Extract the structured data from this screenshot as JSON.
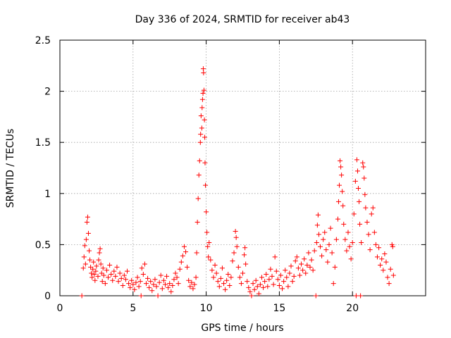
{
  "chart_data": {
    "type": "scatter",
    "title": "Day 336 of 2024, SRMTID for receiver ab43",
    "xlabel": "GPS time / hours",
    "ylabel": "SRMTID / TECUs",
    "xlim": [
      0,
      25
    ],
    "ylim": [
      0,
      2.5
    ],
    "xticks": [
      "0",
      "5",
      "10",
      "15",
      "20"
    ],
    "yticks": [
      "0",
      "0.5",
      "1",
      "1.5",
      "2",
      "2.5"
    ],
    "grid": true,
    "marker": "+",
    "color": "#ff0000",
    "series": [
      {
        "name": "SRMTID",
        "points": [
          [
            1.5,
            0.0
          ],
          [
            1.6,
            0.27
          ],
          [
            1.65,
            0.38
          ],
          [
            1.7,
            0.49
          ],
          [
            1.75,
            0.31
          ],
          [
            1.8,
            0.55
          ],
          [
            1.85,
            0.72
          ],
          [
            1.9,
            0.77
          ],
          [
            1.95,
            0.61
          ],
          [
            2.0,
            0.44
          ],
          [
            2.05,
            0.35
          ],
          [
            2.1,
            0.28
          ],
          [
            2.15,
            0.22
          ],
          [
            2.2,
            0.18
          ],
          [
            2.25,
            0.26
          ],
          [
            2.3,
            0.33
          ],
          [
            2.35,
            0.21
          ],
          [
            2.4,
            0.15
          ],
          [
            2.45,
            0.24
          ],
          [
            2.5,
            0.29
          ],
          [
            2.6,
            0.19
          ],
          [
            2.65,
            0.35
          ],
          [
            2.7,
            0.42
          ],
          [
            2.75,
            0.46
          ],
          [
            2.8,
            0.31
          ],
          [
            2.85,
            0.22
          ],
          [
            2.9,
            0.14
          ],
          [
            2.95,
            0.27
          ],
          [
            3.0,
            0.2
          ],
          [
            3.1,
            0.12
          ],
          [
            3.2,
            0.25
          ],
          [
            3.3,
            0.18
          ],
          [
            3.4,
            0.3
          ],
          [
            3.5,
            0.21
          ],
          [
            3.6,
            0.15
          ],
          [
            3.7,
            0.24
          ],
          [
            3.8,
            0.19
          ],
          [
            3.9,
            0.28
          ],
          [
            4.0,
            0.14
          ],
          [
            4.1,
            0.22
          ],
          [
            4.2,
            0.17
          ],
          [
            4.3,
            0.1
          ],
          [
            4.4,
            0.2
          ],
          [
            4.5,
            0.16
          ],
          [
            4.6,
            0.24
          ],
          [
            4.7,
            0.12
          ],
          [
            4.8,
            0.08
          ],
          [
            4.9,
            0.15
          ],
          [
            5.0,
            0.11
          ],
          [
            5.1,
            0.06
          ],
          [
            5.2,
            0.13
          ],
          [
            5.3,
            0.18
          ],
          [
            5.4,
            0.09
          ],
          [
            5.5,
            0.14
          ],
          [
            5.55,
            0.0
          ],
          [
            5.6,
            0.27
          ],
          [
            5.7,
            0.21
          ],
          [
            5.8,
            0.31
          ],
          [
            5.9,
            0.12
          ],
          [
            6.0,
            0.17
          ],
          [
            6.1,
            0.08
          ],
          [
            6.2,
            0.14
          ],
          [
            6.3,
            0.05
          ],
          [
            6.4,
            0.11
          ],
          [
            6.5,
            0.16
          ],
          [
            6.6,
            0.09
          ],
          [
            6.7,
            0.0
          ],
          [
            6.8,
            0.13
          ],
          [
            6.9,
            0.2
          ],
          [
            7.0,
            0.07
          ],
          [
            7.1,
            0.15
          ],
          [
            7.2,
            0.11
          ],
          [
            7.3,
            0.19
          ],
          [
            7.4,
            0.08
          ],
          [
            7.5,
            0.12
          ],
          [
            7.6,
            0.04
          ],
          [
            7.7,
            0.1
          ],
          [
            7.8,
            0.16
          ],
          [
            7.9,
            0.22
          ],
          [
            8.0,
            0.18
          ],
          [
            8.1,
            0.12
          ],
          [
            8.2,
            0.26
          ],
          [
            8.3,
            0.33
          ],
          [
            8.4,
            0.39
          ],
          [
            8.5,
            0.48
          ],
          [
            8.6,
            0.43
          ],
          [
            8.7,
            0.28
          ],
          [
            8.8,
            0.15
          ],
          [
            8.9,
            0.09
          ],
          [
            9.0,
            0.13
          ],
          [
            9.1,
            0.07
          ],
          [
            9.2,
            0.11
          ],
          [
            9.3,
            0.18
          ],
          [
            9.35,
            0.42
          ],
          [
            9.4,
            0.72
          ],
          [
            9.45,
            0.95
          ],
          [
            9.5,
            1.18
          ],
          [
            9.55,
            1.32
          ],
          [
            9.6,
            1.5
          ],
          [
            9.62,
            1.58
          ],
          [
            9.65,
            1.76
          ],
          [
            9.7,
            1.64
          ],
          [
            9.72,
            1.84
          ],
          [
            9.75,
            1.92
          ],
          [
            9.78,
            1.98
          ],
          [
            9.8,
            2.22
          ],
          [
            9.82,
            2.18
          ],
          [
            9.85,
            2.01
          ],
          [
            9.88,
            1.72
          ],
          [
            9.9,
            1.55
          ],
          [
            9.92,
            1.3
          ],
          [
            9.95,
            1.08
          ],
          [
            10.0,
            0.82
          ],
          [
            10.05,
            0.62
          ],
          [
            10.1,
            0.48
          ],
          [
            10.15,
            0.38
          ],
          [
            10.2,
            0.52
          ],
          [
            10.3,
            0.35
          ],
          [
            10.4,
            0.25
          ],
          [
            10.5,
            0.18
          ],
          [
            10.6,
            0.3
          ],
          [
            10.7,
            0.22
          ],
          [
            10.8,
            0.14
          ],
          [
            10.9,
            0.09
          ],
          [
            11.0,
            0.17
          ],
          [
            11.1,
            0.27
          ],
          [
            11.2,
            0.12
          ],
          [
            11.3,
            0.06
          ],
          [
            11.4,
            0.15
          ],
          [
            11.5,
            0.21
          ],
          [
            11.6,
            0.1
          ],
          [
            11.7,
            0.18
          ],
          [
            11.8,
            0.34
          ],
          [
            11.9,
            0.42
          ],
          [
            12.0,
            0.63
          ],
          [
            12.05,
            0.57
          ],
          [
            12.1,
            0.48
          ],
          [
            12.2,
            0.28
          ],
          [
            12.3,
            0.18
          ],
          [
            12.4,
            0.12
          ],
          [
            12.5,
            0.22
          ],
          [
            12.6,
            0.4
          ],
          [
            12.65,
            0.47
          ],
          [
            12.7,
            0.31
          ],
          [
            12.8,
            0.14
          ],
          [
            12.9,
            0.08
          ],
          [
            13.0,
            0.04
          ],
          [
            13.1,
            0.0
          ],
          [
            13.2,
            0.12
          ],
          [
            13.3,
            0.06
          ],
          [
            13.4,
            0.15
          ],
          [
            13.5,
            0.09
          ],
          [
            13.6,
            0.02
          ],
          [
            13.7,
            0.11
          ],
          [
            13.8,
            0.18
          ],
          [
            13.9,
            0.08
          ],
          [
            14.0,
            0.14
          ],
          [
            14.1,
            0.21
          ],
          [
            14.2,
            0.09
          ],
          [
            14.3,
            0.16
          ],
          [
            14.4,
            0.26
          ],
          [
            14.5,
            0.19
          ],
          [
            14.6,
            0.11
          ],
          [
            14.7,
            0.38
          ],
          [
            14.8,
            0.24
          ],
          [
            14.9,
            0.16
          ],
          [
            15.0,
            0.1
          ],
          [
            15.1,
            0.2
          ],
          [
            15.2,
            0.07
          ],
          [
            15.3,
            0.14
          ],
          [
            15.4,
            0.25
          ],
          [
            15.5,
            0.18
          ],
          [
            15.6,
            0.09
          ],
          [
            15.7,
            0.22
          ],
          [
            15.8,
            0.29
          ],
          [
            15.9,
            0.14
          ],
          [
            16.0,
            0.19
          ],
          [
            16.1,
            0.34
          ],
          [
            16.2,
            0.38
          ],
          [
            16.3,
            0.27
          ],
          [
            16.4,
            0.2
          ],
          [
            16.5,
            0.31
          ],
          [
            16.6,
            0.25
          ],
          [
            16.7,
            0.36
          ],
          [
            16.8,
            0.22
          ],
          [
            16.9,
            0.3
          ],
          [
            17.0,
            0.42
          ],
          [
            17.1,
            0.28
          ],
          [
            17.2,
            0.35
          ],
          [
            17.3,
            0.25
          ],
          [
            17.4,
            0.44
          ],
          [
            17.5,
            0.0
          ],
          [
            17.55,
            0.52
          ],
          [
            17.6,
            0.69
          ],
          [
            17.65,
            0.79
          ],
          [
            17.7,
            0.6
          ],
          [
            17.8,
            0.48
          ],
          [
            17.9,
            0.39
          ],
          [
            18.0,
            0.55
          ],
          [
            18.1,
            0.62
          ],
          [
            18.2,
            0.45
          ],
          [
            18.3,
            0.33
          ],
          [
            18.4,
            0.5
          ],
          [
            18.5,
            0.66
          ],
          [
            18.6,
            0.42
          ],
          [
            18.7,
            0.12
          ],
          [
            18.8,
            0.28
          ],
          [
            18.9,
            0.55
          ],
          [
            19.0,
            0.75
          ],
          [
            19.05,
            0.92
          ],
          [
            19.1,
            1.08
          ],
          [
            19.15,
            1.32
          ],
          [
            19.2,
            1.26
          ],
          [
            19.25,
            1.18
          ],
          [
            19.3,
            1.02
          ],
          [
            19.35,
            0.88
          ],
          [
            19.4,
            0.7
          ],
          [
            19.5,
            0.55
          ],
          [
            19.6,
            0.44
          ],
          [
            19.7,
            0.62
          ],
          [
            19.8,
            0.48
          ],
          [
            19.9,
            0.36
          ],
          [
            20.0,
            0.52
          ],
          [
            20.1,
            0.8
          ],
          [
            20.2,
            1.12
          ],
          [
            20.25,
            0.0
          ],
          [
            20.3,
            1.33
          ],
          [
            20.35,
            1.22
          ],
          [
            20.4,
            1.05
          ],
          [
            20.45,
            0.92
          ],
          [
            20.5,
            0.7
          ],
          [
            20.55,
            0.0
          ],
          [
            20.6,
            0.52
          ],
          [
            20.7,
            1.3
          ],
          [
            20.75,
            1.26
          ],
          [
            20.8,
            1.15
          ],
          [
            20.85,
            0.99
          ],
          [
            20.9,
            0.86
          ],
          [
            21.0,
            0.72
          ],
          [
            21.1,
            0.6
          ],
          [
            21.2,
            0.45
          ],
          [
            21.3,
            0.8
          ],
          [
            21.4,
            0.86
          ],
          [
            21.5,
            0.62
          ],
          [
            21.6,
            0.5
          ],
          [
            21.7,
            0.38
          ],
          [
            21.8,
            0.47
          ],
          [
            21.9,
            0.3
          ],
          [
            22.0,
            0.36
          ],
          [
            22.1,
            0.25
          ],
          [
            22.2,
            0.41
          ],
          [
            22.3,
            0.33
          ],
          [
            22.4,
            0.18
          ],
          [
            22.5,
            0.12
          ],
          [
            22.6,
            0.26
          ],
          [
            22.7,
            0.5
          ],
          [
            22.75,
            0.48
          ],
          [
            22.8,
            0.2
          ]
        ]
      }
    ]
  }
}
